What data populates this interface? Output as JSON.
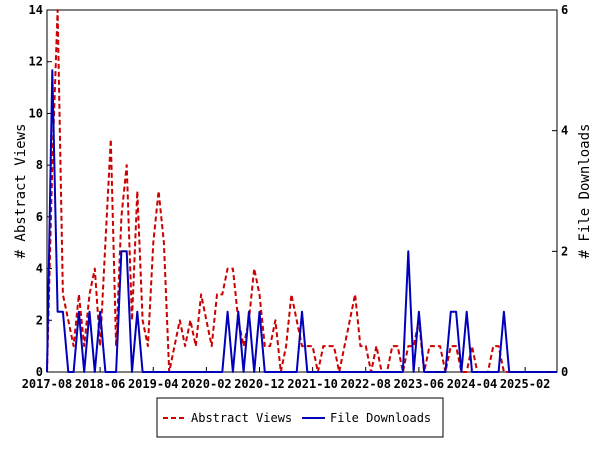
{
  "chart_data": {
    "type": "line",
    "y_left_label": "# Abstract Views",
    "y_right_label": "# File Downloads",
    "y_left_range": [
      0,
      14
    ],
    "y_right_range": [
      0,
      6
    ],
    "y_left_ticks": [
      "0",
      "2",
      "4",
      "6",
      "8",
      "10",
      "12",
      "14"
    ],
    "y_right_ticks": [
      "0",
      "2",
      "4",
      "6"
    ],
    "x_ticks": [
      "2017-08",
      "2018-06",
      "2019-04",
      "2020-02",
      "2020-12",
      "2021-10",
      "2022-08",
      "2023-06",
      "2024-04",
      "2025-02"
    ],
    "legend_placement": "bottom",
    "grid": false,
    "series": [
      {
        "name": "Abstract Views",
        "axis": "left",
        "color": "#cc0000",
        "style": "dashed",
        "x": [
          "2017-08",
          "2017-09",
          "2017-10",
          "2017-11",
          "2017-12",
          "2018-01",
          "2018-02",
          "2018-03",
          "2018-04",
          "2018-05",
          "2018-06",
          "2018-07",
          "2018-08",
          "2018-09",
          "2018-10",
          "2018-11",
          "2018-12",
          "2019-01",
          "2019-02",
          "2019-03",
          "2019-04",
          "2019-05",
          "2019-06",
          "2019-07",
          "2019-08",
          "2019-09",
          "2019-10",
          "2019-11",
          "2019-12",
          "2020-01",
          "2020-02",
          "2020-03",
          "2020-04",
          "2020-05",
          "2020-06",
          "2020-07",
          "2020-08",
          "2020-09",
          "2020-10",
          "2020-11",
          "2020-12",
          "2021-01",
          "2021-02",
          "2021-03",
          "2021-04",
          "2021-05",
          "2021-06",
          "2021-07",
          "2021-08",
          "2021-09",
          "2021-10",
          "2021-11",
          "2021-12",
          "2022-01",
          "2022-02",
          "2022-03",
          "2022-04",
          "2022-05",
          "2022-06",
          "2022-07",
          "2022-08",
          "2022-09",
          "2022-10",
          "2022-11",
          "2022-12",
          "2023-01",
          "2023-02",
          "2023-03",
          "2023-04",
          "2023-05",
          "2023-06",
          "2023-07",
          "2023-08",
          "2023-09",
          "2023-10",
          "2023-11",
          "2023-12",
          "2024-01",
          "2024-02",
          "2024-03",
          "2024-04",
          "2024-05",
          "2024-06",
          "2024-07",
          "2024-08",
          "2024-09",
          "2024-10",
          "2024-11",
          "2024-12",
          "2025-01",
          "2025-02",
          "2025-03",
          "2025-04",
          "2025-05",
          "2025-06",
          "2025-07",
          "2025-08"
        ],
        "values": [
          0,
          8,
          14,
          3,
          2,
          1,
          3,
          1,
          3,
          4,
          1,
          5,
          9,
          1,
          6,
          8,
          2,
          7,
          2,
          1,
          5,
          7,
          5,
          0,
          1,
          2,
          1,
          2,
          1,
          3,
          2,
          1,
          3,
          3,
          4,
          4,
          2,
          1,
          2,
          4,
          3,
          1,
          1,
          2,
          0,
          1,
          3,
          2,
          1,
          1,
          1,
          0,
          1,
          1,
          1,
          0,
          1,
          2,
          3,
          1,
          1,
          0,
          1,
          0,
          0,
          1,
          1,
          0,
          1,
          1,
          2,
          0,
          1,
          1,
          1,
          0,
          1,
          1,
          0,
          0,
          1,
          0,
          0,
          0,
          1,
          1,
          0,
          0,
          0,
          0,
          0,
          0,
          0,
          0,
          0,
          0,
          0
        ]
      },
      {
        "name": "File Downloads",
        "axis": "right",
        "color": "#0000bb",
        "style": "solid",
        "x": [
          "2017-08",
          "2017-09",
          "2017-10",
          "2017-11",
          "2017-12",
          "2018-01",
          "2018-02",
          "2018-03",
          "2018-04",
          "2018-05",
          "2018-06",
          "2018-07",
          "2018-08",
          "2018-09",
          "2018-10",
          "2018-11",
          "2018-12",
          "2019-01",
          "2019-02",
          "2019-03",
          "2019-04",
          "2019-05",
          "2019-06",
          "2019-07",
          "2019-08",
          "2019-09",
          "2019-10",
          "2019-11",
          "2019-12",
          "2020-01",
          "2020-02",
          "2020-03",
          "2020-04",
          "2020-05",
          "2020-06",
          "2020-07",
          "2020-08",
          "2020-09",
          "2020-10",
          "2020-11",
          "2020-12",
          "2021-01",
          "2021-02",
          "2021-03",
          "2021-04",
          "2021-05",
          "2021-06",
          "2021-07",
          "2021-08",
          "2021-09",
          "2021-10",
          "2021-11",
          "2021-12",
          "2022-01",
          "2022-02",
          "2022-03",
          "2022-04",
          "2022-05",
          "2022-06",
          "2022-07",
          "2022-08",
          "2022-09",
          "2022-10",
          "2022-11",
          "2022-12",
          "2023-01",
          "2023-02",
          "2023-03",
          "2023-04",
          "2023-05",
          "2023-06",
          "2023-07",
          "2023-08",
          "2023-09",
          "2023-10",
          "2023-11",
          "2023-12",
          "2024-01",
          "2024-02",
          "2024-03",
          "2024-04",
          "2024-05",
          "2024-06",
          "2024-07",
          "2024-08",
          "2024-09",
          "2024-10",
          "2024-11",
          "2024-12",
          "2025-01",
          "2025-02",
          "2025-03",
          "2025-04",
          "2025-05",
          "2025-06",
          "2025-07",
          "2025-08"
        ],
        "values": [
          0,
          5,
          1,
          1,
          0,
          0,
          1,
          0,
          1,
          0,
          1,
          0,
          0,
          0,
          2,
          2,
          0,
          1,
          0,
          0,
          0,
          0,
          0,
          0,
          0,
          0,
          0,
          0,
          0,
          0,
          0,
          0,
          0,
          0,
          1,
          0,
          1,
          0,
          1,
          0,
          1,
          0,
          0,
          0,
          0,
          0,
          0,
          0,
          1,
          0,
          0,
          0,
          0,
          0,
          0,
          0,
          0,
          0,
          0,
          0,
          0,
          0,
          0,
          0,
          0,
          0,
          0,
          0,
          2,
          0,
          1,
          0,
          0,
          0,
          0,
          0,
          1,
          1,
          0,
          1,
          0,
          0,
          0,
          0,
          0,
          0,
          1,
          0,
          0,
          0,
          0,
          0,
          0,
          0,
          0,
          0,
          0
        ]
      }
    ]
  }
}
